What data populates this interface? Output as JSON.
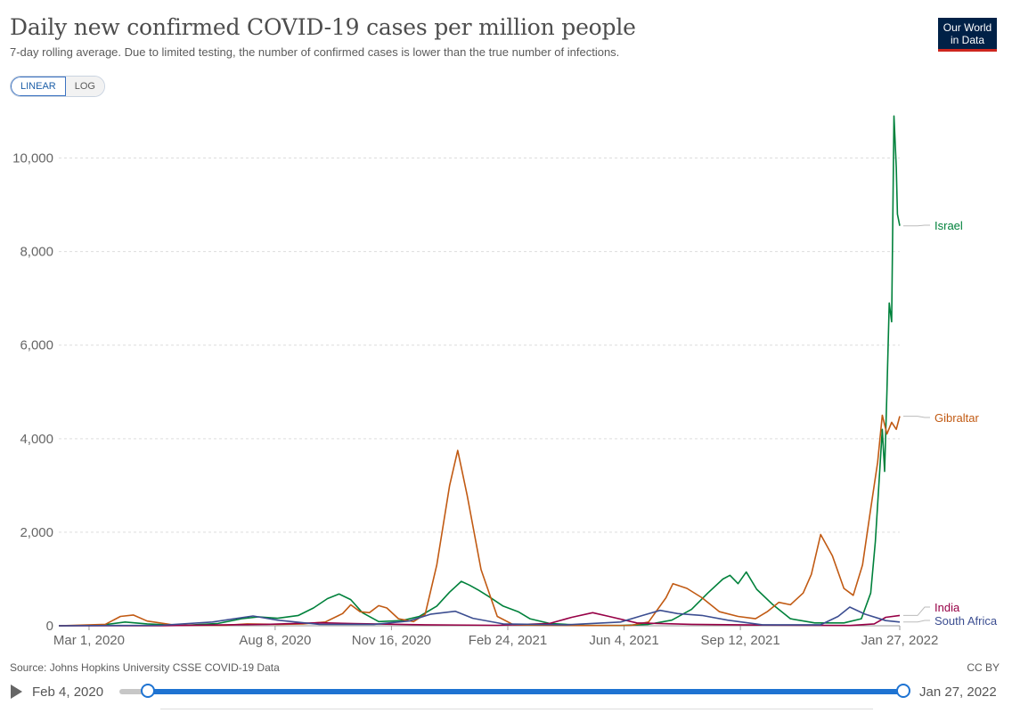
{
  "header": {
    "title": "Daily new confirmed COVID-19 cases per million people",
    "subtitle": "7-day rolling average. Due to limited testing, the number of confirmed cases is lower than the true number of infections.",
    "logo_line1": "Our World",
    "logo_line2": "in Data"
  },
  "scale_toggle": {
    "linear_label": "LINEAR",
    "log_label": "LOG",
    "selected": "LINEAR"
  },
  "footer": {
    "source": "Source: Johns Hopkins University CSSE COVID-19 Data",
    "license": "CC BY"
  },
  "timeline": {
    "start_label": "Feb 4, 2020",
    "end_label": "Jan 27, 2022",
    "selected_start_fraction": 0.0,
    "selected_end_fraction": 1.0
  },
  "chart_data": {
    "type": "line",
    "title": "Daily new confirmed COVID-19 cases per million people",
    "subtitle": "7-day rolling average. Due to limited testing, the number of confirmed cases is lower than the true number of infections.",
    "x_type": "date",
    "xlim": [
      "2020-02-04",
      "2022-01-27"
    ],
    "ylim": [
      0,
      11000
    ],
    "y_ticks": [
      0,
      2000,
      4000,
      6000,
      8000,
      10000
    ],
    "y_tick_labels": [
      "0",
      "2,000",
      "4,000",
      "6,000",
      "8,000",
      "10,000"
    ],
    "x_ticks": [
      "2020-03-01",
      "2020-08-08",
      "2020-11-16",
      "2021-02-24",
      "2021-06-04",
      "2021-09-12",
      "2022-01-27"
    ],
    "x_tick_labels": [
      "Mar 1, 2020",
      "Aug 8, 2020",
      "Nov 16, 2020",
      "Feb 24, 2021",
      "Jun 4, 2021",
      "Sep 12, 2021",
      "Jan 27, 2022"
    ],
    "grid": "horizontal-dashed",
    "legend": "labels at line ends (right)",
    "series": [
      {
        "name": "Israel",
        "color": "#00813b",
        "points": [
          [
            "2020-02-04",
            0
          ],
          [
            "2020-03-10",
            10
          ],
          [
            "2020-04-01",
            80
          ],
          [
            "2020-04-20",
            40
          ],
          [
            "2020-05-20",
            5
          ],
          [
            "2020-06-20",
            50
          ],
          [
            "2020-07-10",
            150
          ],
          [
            "2020-07-25",
            190
          ],
          [
            "2020-08-10",
            160
          ],
          [
            "2020-08-28",
            220
          ],
          [
            "2020-09-10",
            380
          ],
          [
            "2020-09-22",
            580
          ],
          [
            "2020-10-02",
            680
          ],
          [
            "2020-10-12",
            560
          ],
          [
            "2020-10-22",
            280
          ],
          [
            "2020-11-05",
            90
          ],
          [
            "2020-11-25",
            110
          ],
          [
            "2020-12-10",
            200
          ],
          [
            "2020-12-25",
            420
          ],
          [
            "2021-01-05",
            720
          ],
          [
            "2021-01-15",
            950
          ],
          [
            "2021-01-22",
            870
          ],
          [
            "2021-01-30",
            760
          ],
          [
            "2021-02-08",
            620
          ],
          [
            "2021-02-20",
            420
          ],
          [
            "2021-03-05",
            300
          ],
          [
            "2021-03-15",
            150
          ],
          [
            "2021-04-01",
            50
          ],
          [
            "2021-05-01",
            10
          ],
          [
            "2021-06-01",
            5
          ],
          [
            "2021-06-25",
            30
          ],
          [
            "2021-07-15",
            120
          ],
          [
            "2021-08-01",
            350
          ],
          [
            "2021-08-15",
            700
          ],
          [
            "2021-08-28",
            1000
          ],
          [
            "2021-09-03",
            1080
          ],
          [
            "2021-09-10",
            900
          ],
          [
            "2021-09-17",
            1150
          ],
          [
            "2021-09-26",
            780
          ],
          [
            "2021-10-10",
            450
          ],
          [
            "2021-10-25",
            150
          ],
          [
            "2021-11-15",
            60
          ],
          [
            "2021-12-10",
            60
          ],
          [
            "2021-12-25",
            150
          ],
          [
            "2022-01-02",
            700
          ],
          [
            "2022-01-06",
            1800
          ],
          [
            "2022-01-09",
            3000
          ],
          [
            "2022-01-12",
            4200
          ],
          [
            "2022-01-14",
            3300
          ],
          [
            "2022-01-16",
            5000
          ],
          [
            "2022-01-18",
            6900
          ],
          [
            "2022-01-20",
            6500
          ],
          [
            "2022-01-22",
            10900
          ],
          [
            "2022-01-24",
            9800
          ],
          [
            "2022-01-25",
            8800
          ],
          [
            "2022-01-27",
            8550
          ]
        ]
      },
      {
        "name": "Gibraltar",
        "color": "#c15a13",
        "points": [
          [
            "2020-02-04",
            0
          ],
          [
            "2020-03-15",
            30
          ],
          [
            "2020-03-28",
            200
          ],
          [
            "2020-04-08",
            230
          ],
          [
            "2020-04-20",
            100
          ],
          [
            "2020-05-15",
            10
          ],
          [
            "2020-06-25",
            10
          ],
          [
            "2020-07-15",
            40
          ],
          [
            "2020-08-10",
            30
          ],
          [
            "2020-09-01",
            40
          ],
          [
            "2020-09-20",
            80
          ],
          [
            "2020-10-05",
            260
          ],
          [
            "2020-10-12",
            450
          ],
          [
            "2020-10-20",
            300
          ],
          [
            "2020-10-28",
            280
          ],
          [
            "2020-11-05",
            430
          ],
          [
            "2020-11-12",
            380
          ],
          [
            "2020-11-22",
            150
          ],
          [
            "2020-12-05",
            90
          ],
          [
            "2020-12-15",
            250
          ],
          [
            "2020-12-25",
            1300
          ],
          [
            "2021-01-05",
            3000
          ],
          [
            "2021-01-12",
            3750
          ],
          [
            "2021-01-20",
            2800
          ],
          [
            "2021-02-01",
            1200
          ],
          [
            "2021-02-15",
            200
          ],
          [
            "2021-03-01",
            20
          ],
          [
            "2021-04-01",
            10
          ],
          [
            "2021-05-01",
            5
          ],
          [
            "2021-06-10",
            10
          ],
          [
            "2021-06-25",
            80
          ],
          [
            "2021-07-10",
            600
          ],
          [
            "2021-07-16",
            900
          ],
          [
            "2021-07-28",
            800
          ],
          [
            "2021-08-10",
            600
          ],
          [
            "2021-08-25",
            300
          ],
          [
            "2021-09-10",
            200
          ],
          [
            "2021-09-25",
            150
          ],
          [
            "2021-10-05",
            300
          ],
          [
            "2021-10-15",
            500
          ],
          [
            "2021-10-25",
            450
          ],
          [
            "2021-11-05",
            700
          ],
          [
            "2021-11-12",
            1100
          ],
          [
            "2021-11-20",
            1950
          ],
          [
            "2021-11-30",
            1500
          ],
          [
            "2021-12-10",
            800
          ],
          [
            "2021-12-18",
            650
          ],
          [
            "2021-12-26",
            1300
          ],
          [
            "2022-01-02",
            2500
          ],
          [
            "2022-01-08",
            3500
          ],
          [
            "2022-01-12",
            4500
          ],
          [
            "2022-01-16",
            4100
          ],
          [
            "2022-01-20",
            4350
          ],
          [
            "2022-01-24",
            4200
          ],
          [
            "2022-01-27",
            4480
          ]
        ]
      },
      {
        "name": "India",
        "color": "#970046",
        "points": [
          [
            "2020-02-04",
            0
          ],
          [
            "2020-05-01",
            2
          ],
          [
            "2020-08-01",
            30
          ],
          [
            "2020-09-15",
            65
          ],
          [
            "2020-10-15",
            45
          ],
          [
            "2020-12-15",
            20
          ],
          [
            "2021-02-15",
            10
          ],
          [
            "2021-04-01",
            50
          ],
          [
            "2021-04-20",
            180
          ],
          [
            "2021-05-08",
            280
          ],
          [
            "2021-05-22",
            200
          ],
          [
            "2021-06-15",
            60
          ],
          [
            "2021-08-01",
            30
          ],
          [
            "2021-10-01",
            15
          ],
          [
            "2021-12-15",
            5
          ],
          [
            "2022-01-05",
            40
          ],
          [
            "2022-01-15",
            180
          ],
          [
            "2022-01-27",
            220
          ]
        ]
      },
      {
        "name": "South Africa",
        "color": "#3c4e91",
        "points": [
          [
            "2020-02-04",
            0
          ],
          [
            "2020-05-01",
            10
          ],
          [
            "2020-06-15",
            80
          ],
          [
            "2020-07-20",
            210
          ],
          [
            "2020-08-10",
            120
          ],
          [
            "2020-09-15",
            30
          ],
          [
            "2020-11-01",
            30
          ],
          [
            "2020-12-01",
            100
          ],
          [
            "2020-12-20",
            250
          ],
          [
            "2021-01-10",
            310
          ],
          [
            "2021-01-25",
            160
          ],
          [
            "2021-02-20",
            40
          ],
          [
            "2021-04-15",
            20
          ],
          [
            "2021-06-01",
            80
          ],
          [
            "2021-06-20",
            220
          ],
          [
            "2021-07-05",
            330
          ],
          [
            "2021-07-20",
            260
          ],
          [
            "2021-08-10",
            220
          ],
          [
            "2021-09-01",
            120
          ],
          [
            "2021-10-01",
            20
          ],
          [
            "2021-11-20",
            20
          ],
          [
            "2021-12-05",
            200
          ],
          [
            "2021-12-15",
            400
          ],
          [
            "2021-12-28",
            250
          ],
          [
            "2022-01-15",
            110
          ],
          [
            "2022-01-27",
            80
          ]
        ]
      }
    ],
    "end_labels": [
      {
        "name": "Israel",
        "color": "#00813b"
      },
      {
        "name": "Gibraltar",
        "color": "#c15a13"
      },
      {
        "name": "India",
        "color": "#970046"
      },
      {
        "name": "South Africa",
        "color": "#3c4e91"
      }
    ]
  }
}
